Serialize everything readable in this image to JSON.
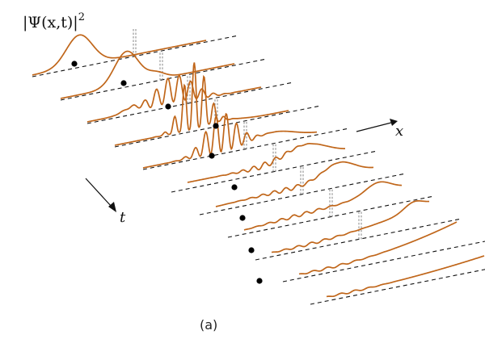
{
  "labels": {
    "y_axis": "|Ψ(x,t)|",
    "y_axis_exponent": "2",
    "x_axis": "x",
    "t_axis": "t",
    "caption": "(a)"
  },
  "colors": {
    "curve": "#c0661a",
    "baseline": "#111111",
    "marker": "#000000",
    "guide": "#777777"
  },
  "slices": [
    {
      "index": 0,
      "shape": "gaussian"
    },
    {
      "index": 1,
      "shape": "gaussian-shifted"
    },
    {
      "index": 2,
      "shape": "interference-small"
    },
    {
      "index": 3,
      "shape": "interference-large"
    },
    {
      "index": 4,
      "shape": "interference-medium"
    },
    {
      "index": 5,
      "shape": "spreading"
    },
    {
      "index": 6,
      "shape": "spreading"
    },
    {
      "index": 7,
      "shape": "spreading"
    },
    {
      "index": 8,
      "shape": "flat-rise"
    },
    {
      "index": 9,
      "shape": "flat-rise"
    },
    {
      "index": 10,
      "shape": "flat"
    }
  ]
}
